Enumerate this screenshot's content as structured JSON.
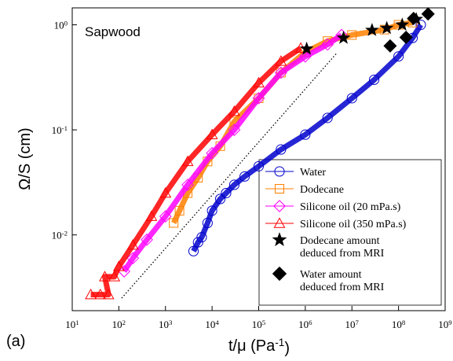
{
  "chart_data": {
    "type": "scatter",
    "log_x": true,
    "log_y": true,
    "annotation": "Sapwood",
    "panel_label": "(a)",
    "x_label": "t/μ (Pa^-1)",
    "y_label": "Ω/S (cm)",
    "xlim": [
      10,
      1000000000
    ],
    "ylim": [
      0.0019,
      1.45
    ],
    "xticks": [
      {
        "value": 10,
        "label": "10^1"
      },
      {
        "value": 100,
        "label": "10^2"
      },
      {
        "value": 1000,
        "label": "10^3"
      },
      {
        "value": 10000,
        "label": "10^4"
      },
      {
        "value": 100000,
        "label": "10^5"
      },
      {
        "value": 1000000,
        "label": "10^6"
      },
      {
        "value": 10000000,
        "label": "10^7"
      },
      {
        "value": 100000000,
        "label": "10^8"
      },
      {
        "value": 1000000000,
        "label": "10^9"
      }
    ],
    "yticks": [
      {
        "value": 0.01,
        "label": "10^-2"
      },
      {
        "value": 0.1,
        "label": "10^-1"
      },
      {
        "value": 1,
        "label": "10^0"
      }
    ],
    "guide_line": {
      "x": [
        115,
        4600000
      ],
      "values": [
        0.0025,
        0.53
      ]
    },
    "series": [
      {
        "name": "Water",
        "color": "#0000cc",
        "marker": "circle",
        "filled": false,
        "x": [
          4000,
          5000,
          6000,
          8000,
          10000,
          15000,
          20000,
          30000,
          50000,
          100000,
          300000,
          1000000,
          3000000,
          10000000,
          30000000,
          100000000,
          200000000,
          300000000
        ],
        "values": [
          0.007,
          0.0085,
          0.0095,
          0.013,
          0.017,
          0.022,
          0.025,
          0.03,
          0.036,
          0.045,
          0.065,
          0.09,
          0.13,
          0.2,
          0.3,
          0.5,
          0.75,
          1.0
        ]
      },
      {
        "name": "Dodecane",
        "color": "#ff8000",
        "marker": "square",
        "filled": false,
        "x": [
          1500,
          2000,
          3000,
          5000,
          8000,
          15000,
          30000,
          100000,
          300000,
          1000000,
          3000000,
          10000000,
          50000000,
          100000000,
          200000000
        ],
        "values": [
          0.013,
          0.017,
          0.025,
          0.035,
          0.05,
          0.07,
          0.12,
          0.2,
          0.35,
          0.55,
          0.7,
          0.8,
          0.9,
          1.0,
          1.05
        ]
      },
      {
        "name": "Silicone oil (20 mPa.s)",
        "color": "#ff00ff",
        "marker": "diamond",
        "filled": false,
        "x": [
          130,
          200,
          400,
          1000,
          3000,
          10000,
          30000,
          100000,
          300000,
          1000000,
          3000000,
          6000000
        ],
        "values": [
          0.0045,
          0.006,
          0.009,
          0.015,
          0.03,
          0.06,
          0.1,
          0.2,
          0.35,
          0.5,
          0.65,
          0.8
        ]
      },
      {
        "name": "Silicone oil (350 mPa.s)",
        "color": "#ff0000",
        "marker": "triangle",
        "filled": false,
        "x": [
          25,
          40,
          60,
          50,
          80,
          100,
          200,
          500,
          1000,
          3000,
          10000,
          30000,
          100000,
          300000,
          800000
        ],
        "values": [
          0.0027,
          0.0027,
          0.0027,
          0.004,
          0.004,
          0.005,
          0.008,
          0.015,
          0.025,
          0.05,
          0.09,
          0.15,
          0.28,
          0.45,
          0.6
        ]
      },
      {
        "name": "Dodecane amount\ndeduced from MRI",
        "color": "#000000",
        "marker": "star",
        "filled": true,
        "x": [
          1070000,
          6600000,
          27000000,
          56000000,
          120000000,
          240000000
        ],
        "values": [
          0.59,
          0.75,
          0.89,
          0.93,
          1.0,
          1.13
        ]
      },
      {
        "name": "Water amount\ndeduced from MRI",
        "color": "#000000",
        "marker": "diamond",
        "filled": true,
        "x": [
          66000000,
          145000000,
          210000000,
          430000000
        ],
        "values": [
          0.63,
          0.76,
          1.15,
          1.27
        ]
      }
    ]
  }
}
